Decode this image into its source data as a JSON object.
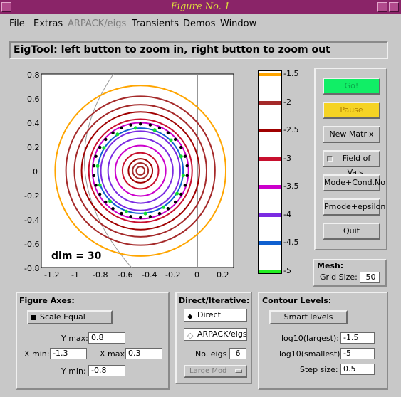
{
  "window": {
    "title": "Figure No. 1"
  },
  "menu": [
    "File",
    "Extras",
    "ARPACK/eigs",
    "Transients",
    "Demos",
    "Window"
  ],
  "message": "EigTool: left button to zoom in, right button to zoom out",
  "axes": {
    "x_ticks": [
      "-1.2",
      "-1",
      "-0.8",
      "-0.6",
      "-0.4",
      "-0.2",
      "0",
      "0.2"
    ],
    "y_ticks": [
      "0.8",
      "0.6",
      "0.4",
      "0.2",
      "0",
      "-0.2",
      "-0.4",
      "-0.6",
      "-0.8"
    ],
    "dim_label": "dim = 30"
  },
  "colorbar": {
    "labels": [
      "-1.5",
      "-2",
      "-2.5",
      "-3",
      "-3.5",
      "-4",
      "-4.5",
      "-5"
    ],
    "colors": [
      "#ffa500",
      "#a52a2a",
      "#a00000",
      "#c8102e",
      "#cc00cc",
      "#7b2be2",
      "#1060d0",
      "#22ee22"
    ]
  },
  "buttons": {
    "go": "Go!",
    "pause": "Pause",
    "new_matrix": "New Matrix",
    "field_of_vals": "Field of Vals.",
    "mode_cond": "Mode+Cond.No",
    "pmode": "Pmode+epsilon",
    "quit": "Quit"
  },
  "mesh": {
    "title": "Mesh:",
    "grid_label": "Grid Size:",
    "grid_size": "50"
  },
  "figure_axes": {
    "title": "Figure Axes:",
    "scale_equal": "Scale Equal",
    "ymax_label": "Y max:",
    "ymax": "0.8",
    "xmin_label": "X min:",
    "xmin": "-1.3",
    "xmax_label": "X max:",
    "xmax": "0.3",
    "ymin_label": "Y min:",
    "ymin": "-0.8"
  },
  "direct": {
    "title": "Direct/Iterative:",
    "direct": "Direct",
    "arpack": "ARPACK/eigs",
    "no_eigs_label": "No. eigs",
    "no_eigs": "6",
    "mode_select": "Large Mod"
  },
  "contour": {
    "title": "Contour Levels:",
    "smart": "Smart  levels",
    "largest_label": "log10(largest):",
    "largest": "-1.5",
    "smallest_label": "log10(smallest):",
    "smallest": "-5",
    "step_label": "Step size:",
    "step": "0.5"
  },
  "plot_colors": [
    "#ffa500",
    "#a52a2a",
    "#a00000",
    "#c8102e",
    "#cc00cc",
    "#7b2be2",
    "#1060d0",
    "#22ee22"
  ],
  "eigenvalues": {
    "center_x": -0.475,
    "radius": 0.39
  }
}
